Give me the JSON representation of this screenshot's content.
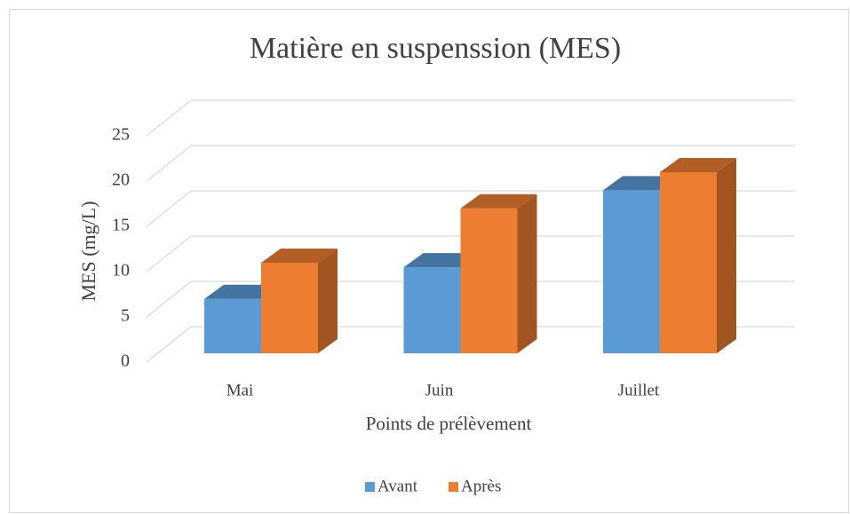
{
  "chart_data": {
    "type": "bar3d",
    "title": "Matière en suspenssion (MES)",
    "x_label": "Points de prélèvement",
    "y_label": "MES (mg/L)",
    "categories": [
      "Mai",
      "Juin",
      "Juillet"
    ],
    "series": [
      {
        "name": "Avant",
        "color": "#5b9bd5",
        "values": [
          6,
          9.5,
          18
        ]
      },
      {
        "name": "Après",
        "color": "#ed7d31",
        "values": [
          10,
          16,
          20
        ]
      }
    ],
    "ylim": [
      0,
      25
    ],
    "yticks": [
      0,
      5,
      10,
      15,
      20,
      25
    ],
    "grid": true,
    "legend": "bottom"
  }
}
